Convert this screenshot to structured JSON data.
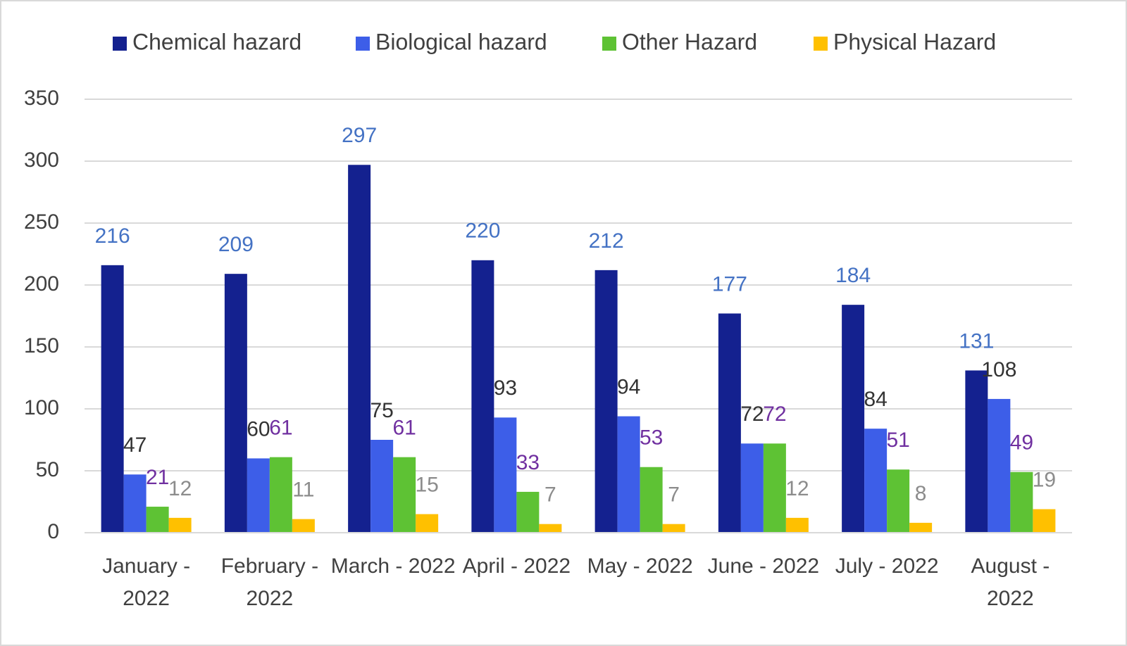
{
  "chart_data": {
    "type": "bar",
    "categories": [
      "January - 2022",
      "February - 2022",
      "March - 2022",
      "April - 2022",
      "May - 2022",
      "June - 2022",
      "July - 2022",
      "August - 2022"
    ],
    "series": [
      {
        "name": "Chemical hazard",
        "color": "#14218f",
        "label_color": "#4472c4",
        "values": [
          216,
          209,
          297,
          220,
          212,
          177,
          184,
          131
        ]
      },
      {
        "name": "Biological hazard",
        "color": "#3d5ee8",
        "label_color": "#333333",
        "values": [
          47,
          60,
          75,
          93,
          94,
          72,
          84,
          108
        ]
      },
      {
        "name": "Other Hazard",
        "color": "#5ec234",
        "label_color": "#7030a0",
        "values": [
          21,
          61,
          61,
          33,
          53,
          72,
          51,
          49
        ]
      },
      {
        "name": "Physical Hazard",
        "color": "#ffc000",
        "label_color": "#8c8c8c",
        "values": [
          12,
          11,
          15,
          7,
          7,
          12,
          8,
          19
        ]
      }
    ],
    "ylim": [
      0,
      350
    ],
    "yticks": [
      0,
      50,
      100,
      150,
      200,
      250,
      300,
      350
    ],
    "grid": true,
    "legend": "top"
  }
}
